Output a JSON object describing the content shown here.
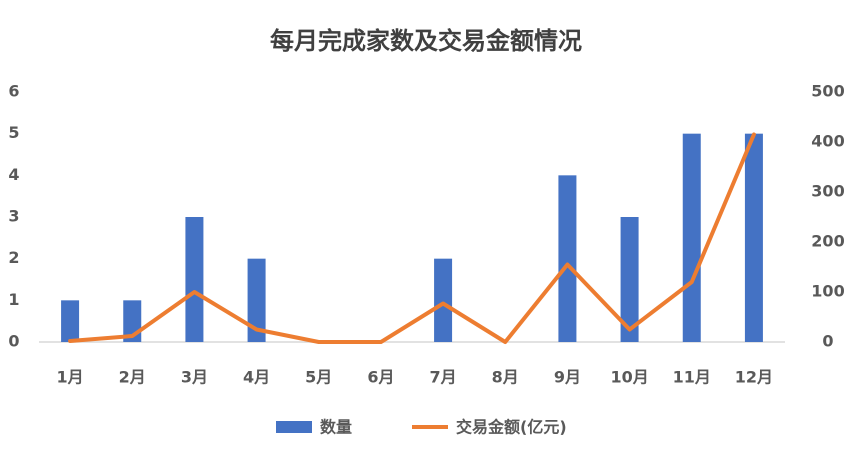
{
  "chart_data": {
    "type": "bar-line",
    "title": "每月完成家数及交易金额情况",
    "categories": [
      "1月",
      "2月",
      "3月",
      "4月",
      "5月",
      "6月",
      "7月",
      "8月",
      "9月",
      "10月",
      "11月",
      "12月"
    ],
    "series": [
      {
        "name": "数量",
        "type": "bar",
        "color": "#4472c4",
        "values": [
          1,
          1,
          3,
          2,
          0,
          0,
          2,
          0,
          4,
          3,
          5,
          5
        ]
      },
      {
        "name": "交易金额(亿元)",
        "type": "line",
        "axis": "y2",
        "color": "#ed7d31",
        "values": [
          2,
          12,
          100,
          25,
          0,
          0,
          77,
          0,
          155,
          25,
          120,
          415
        ]
      }
    ],
    "ylim": [
      0,
      6
    ],
    "yticks": [
      0,
      1,
      2,
      3,
      4,
      5,
      6
    ],
    "y2lim": [
      0,
      500
    ],
    "y2ticks": [
      0,
      100,
      200,
      300,
      400,
      500
    ],
    "legend": "bottom"
  }
}
